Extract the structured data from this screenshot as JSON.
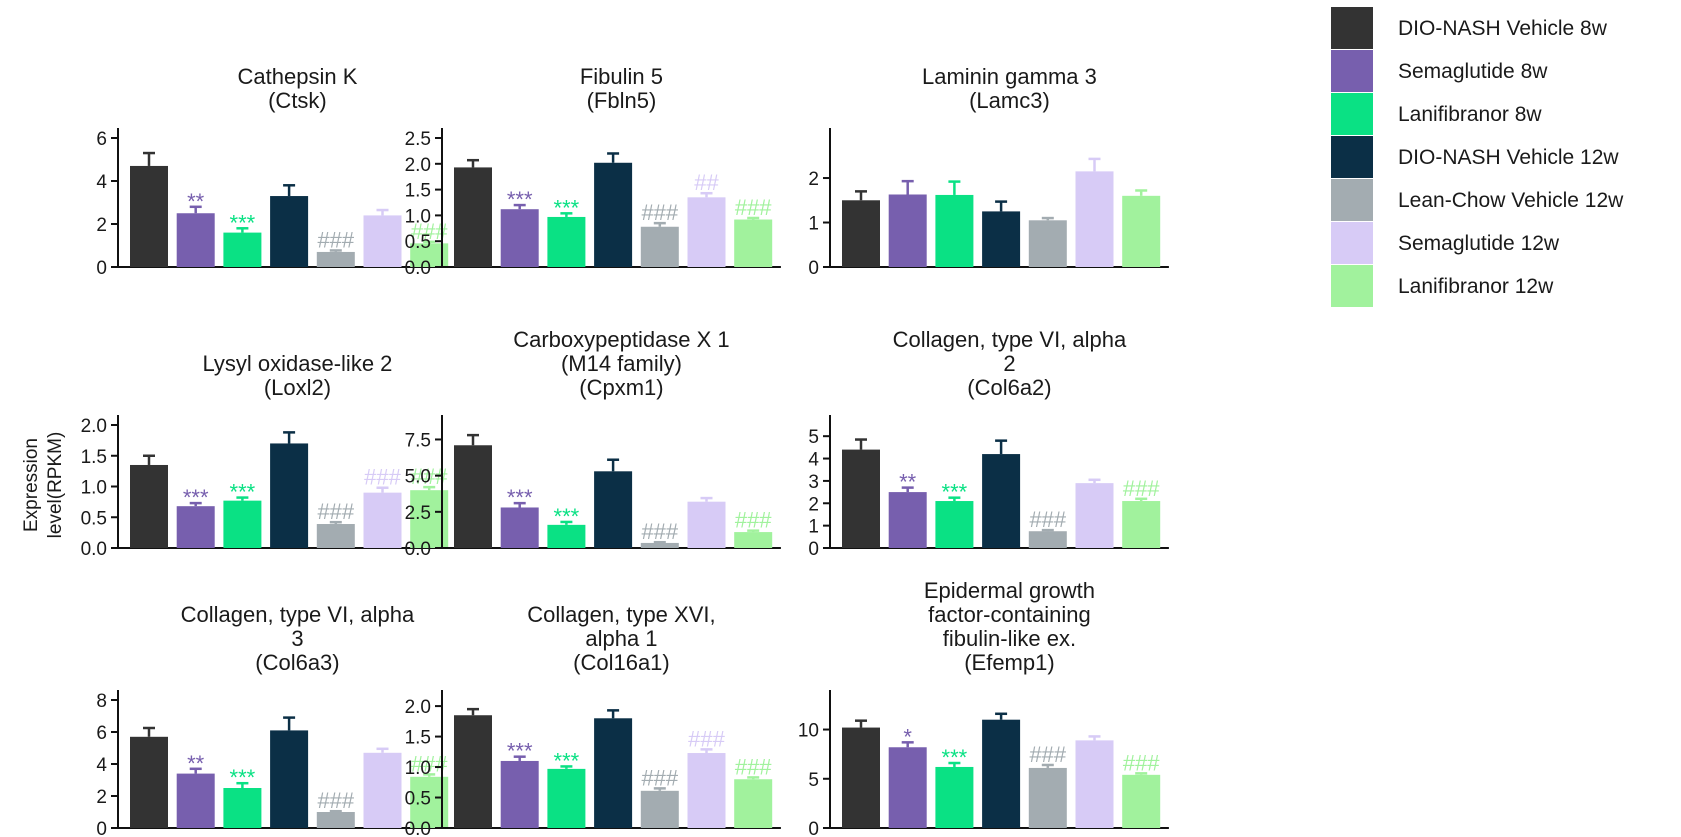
{
  "legend": [
    {
      "label": "DIO-NASH Vehicle 8w",
      "color": "#333333"
    },
    {
      "label": "Semaglutide 8w",
      "color": "#775fae"
    },
    {
      "label": "Lanifibranor 8w",
      "color": "#0ae184"
    },
    {
      "label": "DIO-NASH Vehicle 12w",
      "color": "#0b2f46"
    },
    {
      "label": "Lean-Chow Vehicle 12w",
      "color": "#a3acb1"
    },
    {
      "label": "Semaglutide 12w",
      "color": "#d7cbf6"
    },
    {
      "label": "Lanifibranor 12w",
      "color": "#a1f29d"
    }
  ],
  "y_axis_label": [
    "Expression",
    "level(RPKM)"
  ],
  "chart_data": [
    {
      "type": "bar",
      "title": [
        "Cathepsin K",
        "(Ctsk)"
      ],
      "ylim": [
        0,
        6
      ],
      "yticks": [
        "0",
        "2",
        "4",
        "6"
      ],
      "categories": [
        "DIO-NASH Vehicle 8w",
        "Semaglutide 8w",
        "Lanifibranor 8w",
        "DIO-NASH Vehicle 12w",
        "Lean-Chow Vehicle 12w",
        "Semaglutide 12w",
        "Lanifibranor 12w"
      ],
      "values": [
        4.7,
        2.5,
        1.6,
        3.3,
        0.7,
        2.4,
        1.1
      ],
      "errors": [
        0.6,
        0.3,
        0.2,
        0.5,
        0.07,
        0.25,
        0.07
      ],
      "annotations": [
        "",
        "**",
        "***",
        "",
        "###",
        "",
        "###"
      ]
    },
    {
      "type": "bar",
      "title": [
        "Fibulin 5",
        "(Fbln5)"
      ],
      "ylim": [
        0,
        2.5
      ],
      "yticks": [
        "0.0",
        "0.5",
        "1.0",
        "1.5",
        "2.0",
        "2.5"
      ],
      "categories": [
        "DIO-NASH Vehicle 8w",
        "Semaglutide 8w",
        "Lanifibranor 8w",
        "DIO-NASH Vehicle 12w",
        "Lean-Chow Vehicle 12w",
        "Semaglutide 12w",
        "Lanifibranor 12w"
      ],
      "values": [
        1.93,
        1.12,
        0.97,
        2.02,
        0.78,
        1.35,
        0.92
      ],
      "errors": [
        0.14,
        0.08,
        0.07,
        0.18,
        0.07,
        0.08,
        0.03
      ],
      "annotations": [
        "",
        "***",
        "***",
        "",
        "###",
        "##",
        "###"
      ]
    },
    {
      "type": "bar",
      "title": [
        "Laminin gamma 3",
        "(Lamc3)"
      ],
      "ylim": [
        0,
        2.9
      ],
      "yticks": [
        "0",
        "1",
        "2"
      ],
      "categories": [
        "DIO-NASH Vehicle 8w",
        "Semaglutide 8w",
        "Lanifibranor 8w",
        "DIO-NASH Vehicle 12w",
        "Lean-Chow Vehicle 12w",
        "Semaglutide 12w",
        "Lanifibranor 12w"
      ],
      "values": [
        1.5,
        1.63,
        1.62,
        1.25,
        1.05,
        2.15,
        1.6
      ],
      "errors": [
        0.2,
        0.3,
        0.3,
        0.22,
        0.05,
        0.28,
        0.12
      ],
      "annotations": [
        "",
        "",
        "",
        "",
        "",
        "",
        ""
      ]
    },
    {
      "type": "bar",
      "title": [
        "Lysyl oxidase-like 2",
        "(Loxl2)"
      ],
      "ylim": [
        0,
        2.0
      ],
      "yticks": [
        "0.0",
        "0.5",
        "1.0",
        "1.5",
        "2.0"
      ],
      "categories": [
        "DIO-NASH Vehicle 8w",
        "Semaglutide 8w",
        "Lanifibranor 8w",
        "DIO-NASH Vehicle 12w",
        "Lean-Chow Vehicle 12w",
        "Semaglutide 12w",
        "Lanifibranor 12w"
      ],
      "values": [
        1.35,
        0.68,
        0.77,
        1.7,
        0.39,
        0.9,
        0.94
      ],
      "errors": [
        0.15,
        0.05,
        0.05,
        0.18,
        0.03,
        0.08,
        0.05
      ],
      "annotations": [
        "",
        "***",
        "***",
        "",
        "###",
        "###",
        "###"
      ]
    },
    {
      "type": "bar",
      "title": [
        "Carboxypeptidase X 1",
        "(M14 family)",
        "(Cpxm1)"
      ],
      "ylim": [
        0,
        8.5
      ],
      "yticks": [
        "0.0",
        "2.5",
        "5.0",
        "7.5"
      ],
      "categories": [
        "DIO-NASH Vehicle 8w",
        "Semaglutide 8w",
        "Lanifibranor 8w",
        "DIO-NASH Vehicle 12w",
        "Lean-Chow Vehicle 12w",
        "Semaglutide 12w",
        "Lanifibranor 12w"
      ],
      "values": [
        7.1,
        2.8,
        1.6,
        5.3,
        0.35,
        3.2,
        1.1
      ],
      "errors": [
        0.7,
        0.3,
        0.2,
        0.8,
        0.05,
        0.25,
        0.1
      ],
      "annotations": [
        "",
        "***",
        "***",
        "",
        "###",
        "",
        "###"
      ]
    },
    {
      "type": "bar",
      "title": [
        "Collagen, type VI, alpha",
        "2",
        "(Col6a2)"
      ],
      "ylim": [
        0,
        5.5
      ],
      "yticks": [
        "0",
        "1",
        "2",
        "3",
        "4",
        "5"
      ],
      "categories": [
        "DIO-NASH Vehicle 8w",
        "Semaglutide 8w",
        "Lanifibranor 8w",
        "DIO-NASH Vehicle 12w",
        "Lean-Chow Vehicle 12w",
        "Semaglutide 12w",
        "Lanifibranor 12w"
      ],
      "values": [
        4.4,
        2.5,
        2.1,
        4.2,
        0.75,
        2.9,
        2.1
      ],
      "errors": [
        0.45,
        0.2,
        0.15,
        0.6,
        0.05,
        0.15,
        0.1
      ],
      "annotations": [
        "",
        "**",
        "***",
        "",
        "###",
        "",
        "###"
      ]
    },
    {
      "type": "bar",
      "title": [
        "Collagen, type VI, alpha",
        "3",
        "(Col6a3)"
      ],
      "ylim": [
        0,
        8
      ],
      "yticks": [
        "0",
        "2",
        "4",
        "6",
        "8"
      ],
      "categories": [
        "DIO-NASH Vehicle 8w",
        "Semaglutide 8w",
        "Lanifibranor 8w",
        "DIO-NASH Vehicle 12w",
        "Lean-Chow Vehicle 12w",
        "Semaglutide 12w",
        "Lanifibranor 12w"
      ],
      "values": [
        5.7,
        3.4,
        2.5,
        6.1,
        1.0,
        4.7,
        3.2
      ],
      "errors": [
        0.55,
        0.3,
        0.3,
        0.8,
        0.05,
        0.25,
        0.15
      ],
      "annotations": [
        "",
        "**",
        "***",
        "",
        "###",
        "",
        "###"
      ]
    },
    {
      "type": "bar",
      "title": [
        "Collagen, type XVI,",
        "alpha 1",
        "(Col16a1)"
      ],
      "ylim": [
        0,
        2.1
      ],
      "yticks": [
        "0.0",
        "0.5",
        "1.0",
        "1.5",
        "2.0"
      ],
      "categories": [
        "DIO-NASH Vehicle 8w",
        "Semaglutide 8w",
        "Lanifibranor 8w",
        "DIO-NASH Vehicle 12w",
        "Lean-Chow Vehicle 12w",
        "Semaglutide 12w",
        "Lanifibranor 12w"
      ],
      "values": [
        1.85,
        1.1,
        0.97,
        1.8,
        0.61,
        1.23,
        0.8
      ],
      "errors": [
        0.1,
        0.07,
        0.04,
        0.13,
        0.04,
        0.06,
        0.03
      ],
      "annotations": [
        "",
        "***",
        "***",
        "",
        "###",
        "###",
        "###"
      ]
    },
    {
      "type": "bar",
      "title": [
        "Epidermal growth",
        "factor-containing",
        "fibulin-like ex.",
        "(Efemp1)"
      ],
      "ylim": [
        0,
        13
      ],
      "yticks": [
        "0",
        "5",
        "10"
      ],
      "categories": [
        "DIO-NASH Vehicle 8w",
        "Semaglutide 8w",
        "Lanifibranor 8w",
        "DIO-NASH Vehicle 12w",
        "Lean-Chow Vehicle 12w",
        "Semaglutide 12w",
        "Lanifibranor 12w"
      ],
      "values": [
        10.2,
        8.2,
        6.2,
        11.0,
        6.1,
        8.9,
        5.4
      ],
      "errors": [
        0.7,
        0.5,
        0.4,
        0.6,
        0.3,
        0.4,
        0.15
      ],
      "annotations": [
        "",
        "*",
        "***",
        "",
        "###",
        "",
        "###"
      ]
    }
  ]
}
